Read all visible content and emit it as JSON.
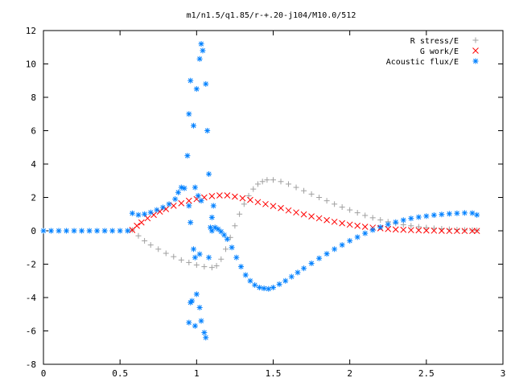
{
  "chart_data": {
    "type": "scatter",
    "title": "m1/n1.5/q1.85/r-+.20-j104/M10.0/512",
    "xlabel": "",
    "ylabel": "",
    "xlim": [
      0,
      3
    ],
    "ylim": [
      -8,
      12
    ],
    "x_ticks": [
      "0",
      "0.5",
      "1",
      "1.5",
      "2",
      "2.5",
      "3"
    ],
    "y_ticks": [
      "-8",
      "-6",
      "-4",
      "-2",
      "0",
      "2",
      "4",
      "6",
      "8",
      "10",
      "12"
    ],
    "legend_position": "top-right",
    "grid": false,
    "series": [
      {
        "name": "R stress/E",
        "color": "#a0a0a0",
        "marker": "plus",
        "points": [
          [
            0.58,
            0.05
          ],
          [
            0.62,
            -0.3
          ],
          [
            0.66,
            -0.6
          ],
          [
            0.7,
            -0.85
          ],
          [
            0.75,
            -1.1
          ],
          [
            0.8,
            -1.35
          ],
          [
            0.85,
            -1.55
          ],
          [
            0.9,
            -1.75
          ],
          [
            0.95,
            -1.9
          ],
          [
            1.0,
            -2.05
          ],
          [
            1.05,
            -2.15
          ],
          [
            1.1,
            -2.2
          ],
          [
            1.13,
            -2.1
          ],
          [
            1.16,
            -1.7
          ],
          [
            1.19,
            -1.1
          ],
          [
            1.22,
            -0.4
          ],
          [
            1.25,
            0.3
          ],
          [
            1.28,
            1.0
          ],
          [
            1.31,
            1.6
          ],
          [
            1.34,
            2.1
          ],
          [
            1.37,
            2.5
          ],
          [
            1.4,
            2.8
          ],
          [
            1.43,
            2.95
          ],
          [
            1.46,
            3.05
          ],
          [
            1.5,
            3.05
          ],
          [
            1.55,
            2.95
          ],
          [
            1.6,
            2.8
          ],
          [
            1.65,
            2.6
          ],
          [
            1.7,
            2.4
          ],
          [
            1.75,
            2.2
          ],
          [
            1.8,
            2.0
          ],
          [
            1.85,
            1.8
          ],
          [
            1.9,
            1.6
          ],
          [
            1.95,
            1.42
          ],
          [
            2.0,
            1.25
          ],
          [
            2.05,
            1.08
          ],
          [
            2.1,
            0.92
          ],
          [
            2.15,
            0.78
          ],
          [
            2.2,
            0.65
          ],
          [
            2.25,
            0.54
          ],
          [
            2.3,
            0.44
          ],
          [
            2.35,
            0.36
          ],
          [
            2.4,
            0.3
          ],
          [
            2.45,
            0.24
          ],
          [
            2.5,
            0.19
          ],
          [
            2.55,
            0.15
          ],
          [
            2.6,
            0.12
          ],
          [
            2.65,
            0.09
          ],
          [
            2.7,
            0.07
          ],
          [
            2.75,
            0.05
          ],
          [
            2.8,
            0.04
          ],
          [
            2.83,
            0.03
          ]
        ]
      },
      {
        "name": "G work/E",
        "color": "#ff0000",
        "marker": "cross",
        "points": [
          [
            0.58,
            0.05
          ],
          [
            0.61,
            0.3
          ],
          [
            0.64,
            0.5
          ],
          [
            0.68,
            0.75
          ],
          [
            0.72,
            0.95
          ],
          [
            0.76,
            1.15
          ],
          [
            0.8,
            1.3
          ],
          [
            0.85,
            1.5
          ],
          [
            0.9,
            1.65
          ],
          [
            0.95,
            1.8
          ],
          [
            1.0,
            1.9
          ],
          [
            1.05,
            2.0
          ],
          [
            1.1,
            2.08
          ],
          [
            1.15,
            2.12
          ],
          [
            1.2,
            2.12
          ],
          [
            1.25,
            2.05
          ],
          [
            1.3,
            1.95
          ],
          [
            1.35,
            1.85
          ],
          [
            1.4,
            1.72
          ],
          [
            1.45,
            1.6
          ],
          [
            1.5,
            1.48
          ],
          [
            1.55,
            1.36
          ],
          [
            1.6,
            1.22
          ],
          [
            1.65,
            1.1
          ],
          [
            1.7,
            0.98
          ],
          [
            1.75,
            0.86
          ],
          [
            1.8,
            0.75
          ],
          [
            1.85,
            0.64
          ],
          [
            1.9,
            0.54
          ],
          [
            1.95,
            0.45
          ],
          [
            2.0,
            0.37
          ],
          [
            2.05,
            0.3
          ],
          [
            2.1,
            0.24
          ],
          [
            2.15,
            0.19
          ],
          [
            2.2,
            0.15
          ],
          [
            2.25,
            0.11
          ],
          [
            2.3,
            0.08
          ],
          [
            2.35,
            0.06
          ],
          [
            2.4,
            0.04
          ],
          [
            2.45,
            0.03
          ],
          [
            2.5,
            0.02
          ],
          [
            2.55,
            0.01
          ],
          [
            2.6,
            0.0
          ],
          [
            2.65,
            -0.01
          ],
          [
            2.7,
            -0.01
          ],
          [
            2.75,
            -0.01
          ],
          [
            2.8,
            -0.01
          ],
          [
            2.83,
            -0.01
          ]
        ]
      },
      {
        "name": "Acoustic flux/E",
        "color": "#0080ff",
        "marker": "star",
        "points": [
          [
            0.0,
            0.0
          ],
          [
            0.05,
            0.0
          ],
          [
            0.1,
            0.0
          ],
          [
            0.15,
            0.0
          ],
          [
            0.2,
            0.0
          ],
          [
            0.25,
            0.0
          ],
          [
            0.3,
            0.0
          ],
          [
            0.35,
            0.0
          ],
          [
            0.4,
            0.0
          ],
          [
            0.45,
            0.0
          ],
          [
            0.5,
            0.0
          ],
          [
            0.55,
            0.0
          ],
          [
            0.58,
            1.05
          ],
          [
            0.62,
            0.95
          ],
          [
            0.66,
            1.0
          ],
          [
            0.7,
            1.1
          ],
          [
            0.74,
            1.25
          ],
          [
            0.78,
            1.4
          ],
          [
            0.82,
            1.6
          ],
          [
            0.86,
            1.9
          ],
          [
            0.88,
            2.3
          ],
          [
            0.9,
            2.6
          ],
          [
            0.92,
            2.55
          ],
          [
            0.94,
            4.5
          ],
          [
            0.95,
            7.0
          ],
          [
            0.96,
            9.0
          ],
          [
            0.98,
            6.3
          ],
          [
            1.0,
            8.5
          ],
          [
            1.02,
            10.3
          ],
          [
            1.03,
            11.2
          ],
          [
            1.04,
            10.8
          ],
          [
            1.06,
            8.8
          ],
          [
            1.07,
            6.0
          ],
          [
            1.08,
            3.4
          ],
          [
            0.99,
            2.6
          ],
          [
            1.01,
            2.1
          ],
          [
            0.96,
            0.5
          ],
          [
            0.95,
            1.5
          ],
          [
            1.03,
            1.8
          ],
          [
            1.1,
            0.8
          ],
          [
            1.11,
            1.5
          ],
          [
            1.09,
            0.2
          ],
          [
            0.98,
            -1.1
          ],
          [
            0.99,
            -1.6
          ],
          [
            1.02,
            -1.4
          ],
          [
            1.08,
            -1.6
          ],
          [
            0.96,
            -4.3
          ],
          [
            0.97,
            -4.2
          ],
          [
            1.0,
            -3.8
          ],
          [
            1.02,
            -4.6
          ],
          [
            0.95,
            -5.5
          ],
          [
            0.99,
            -5.7
          ],
          [
            1.03,
            -5.4
          ],
          [
            1.05,
            -6.1
          ],
          [
            1.06,
            -6.4
          ],
          [
            1.1,
            0.0
          ],
          [
            1.12,
            0.2
          ],
          [
            1.14,
            0.1
          ],
          [
            1.16,
            -0.05
          ],
          [
            1.18,
            -0.25
          ],
          [
            1.2,
            -0.5
          ],
          [
            1.23,
            -1.0
          ],
          [
            1.26,
            -1.6
          ],
          [
            1.29,
            -2.15
          ],
          [
            1.32,
            -2.65
          ],
          [
            1.35,
            -3.0
          ],
          [
            1.38,
            -3.25
          ],
          [
            1.41,
            -3.4
          ],
          [
            1.44,
            -3.45
          ],
          [
            1.47,
            -3.48
          ],
          [
            1.5,
            -3.4
          ],
          [
            1.54,
            -3.2
          ],
          [
            1.58,
            -3.0
          ],
          [
            1.62,
            -2.75
          ],
          [
            1.66,
            -2.5
          ],
          [
            1.7,
            -2.25
          ],
          [
            1.75,
            -1.95
          ],
          [
            1.8,
            -1.65
          ],
          [
            1.85,
            -1.38
          ],
          [
            1.9,
            -1.1
          ],
          [
            1.95,
            -0.85
          ],
          [
            2.0,
            -0.6
          ],
          [
            2.05,
            -0.38
          ],
          [
            2.1,
            -0.15
          ],
          [
            2.15,
            0.05
          ],
          [
            2.2,
            0.22
          ],
          [
            2.25,
            0.38
          ],
          [
            2.3,
            0.52
          ],
          [
            2.35,
            0.64
          ],
          [
            2.4,
            0.74
          ],
          [
            2.45,
            0.82
          ],
          [
            2.5,
            0.88
          ],
          [
            2.55,
            0.94
          ],
          [
            2.6,
            0.98
          ],
          [
            2.65,
            1.02
          ],
          [
            2.7,
            1.05
          ],
          [
            2.75,
            1.07
          ],
          [
            2.8,
            1.06
          ],
          [
            2.83,
            0.95
          ]
        ]
      }
    ]
  }
}
